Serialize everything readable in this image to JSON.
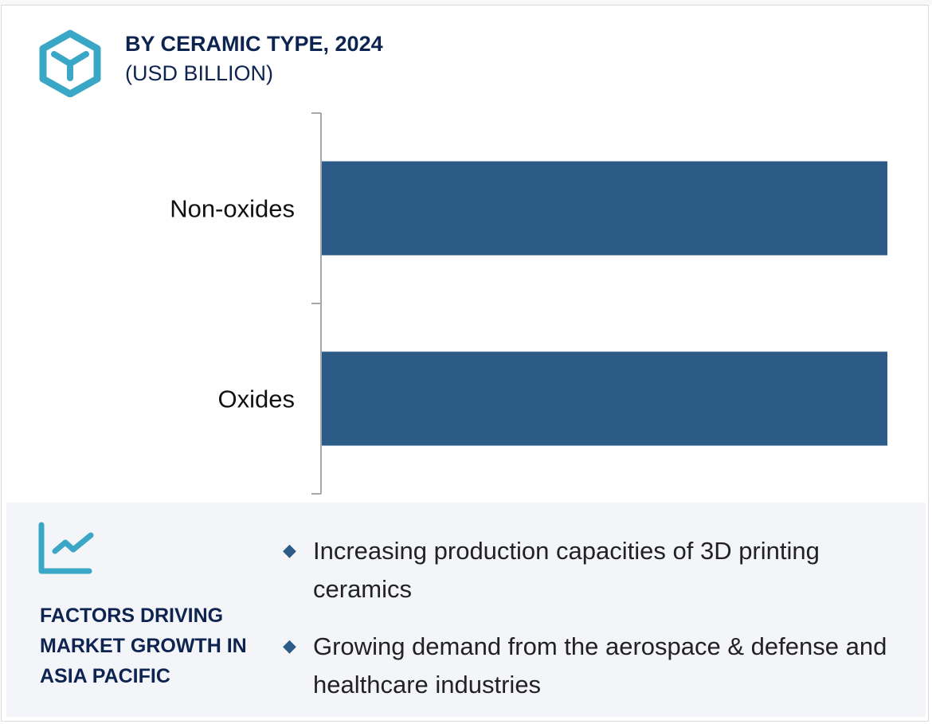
{
  "header": {
    "title": "BY CERAMIC TYPE, 2024",
    "subtitle": "(USD BILLION)",
    "icon": "hexagon-cube-icon"
  },
  "chart_data": {
    "type": "bar",
    "orientation": "horizontal",
    "categories": [
      "Non-oxides",
      "Oxides"
    ],
    "values": [
      1,
      1
    ],
    "title": "BY CERAMIC TYPE, 2024",
    "subtitle": "(USD BILLION)",
    "xlabel": "",
    "ylabel": "",
    "grid": false,
    "bar_color": "#2d5b88"
  },
  "factors": {
    "icon": "line-chart-icon",
    "heading_lines": [
      "FACTORS DRIVING",
      "MARKET GROWTH IN",
      "ASIA PACIFIC"
    ],
    "bullets": [
      "Increasing production capacities of 3D printing ceramics",
      "Growing demand from the aerospace & defense and healthcare industries"
    ],
    "accent": "#3aa7c7",
    "heading_color": "#0d2451"
  }
}
